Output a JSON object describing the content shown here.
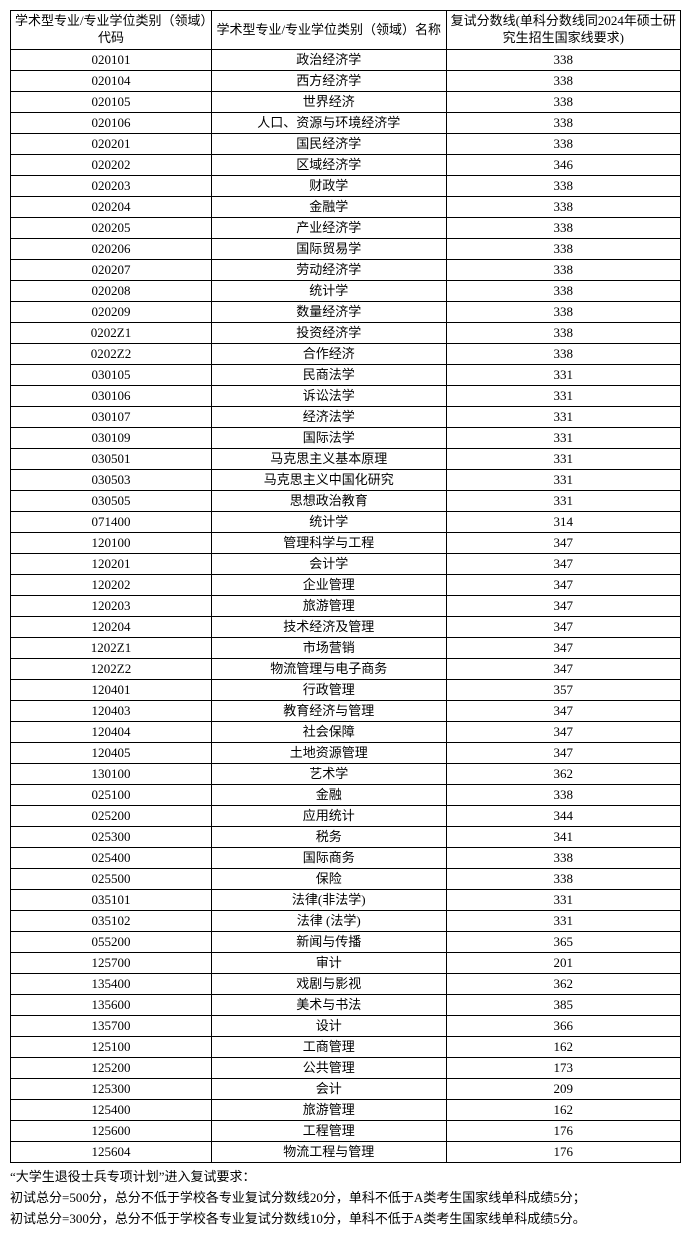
{
  "table": {
    "headers": [
      "学术型专业/专业学位类别（领域）代码",
      "学术型专业/专业学位类别（领域）名称",
      "复试分数线(单科分数线同2024年硕士研究生招生国家线要求)"
    ],
    "rows": [
      [
        "020101",
        "政治经济学",
        "338"
      ],
      [
        "020104",
        "西方经济学",
        "338"
      ],
      [
        "020105",
        "世界经济",
        "338"
      ],
      [
        "020106",
        "人口、资源与环境经济学",
        "338"
      ],
      [
        "020201",
        "国民经济学",
        "338"
      ],
      [
        "020202",
        "区域经济学",
        "346"
      ],
      [
        "020203",
        "财政学",
        "338"
      ],
      [
        "020204",
        "金融学",
        "338"
      ],
      [
        "020205",
        "产业经济学",
        "338"
      ],
      [
        "020206",
        "国际贸易学",
        "338"
      ],
      [
        "020207",
        "劳动经济学",
        "338"
      ],
      [
        "020208",
        "统计学",
        "338"
      ],
      [
        "020209",
        "数量经济学",
        "338"
      ],
      [
        "0202Z1",
        "投资经济学",
        "338"
      ],
      [
        "0202Z2",
        "合作经济",
        "338"
      ],
      [
        "030105",
        "民商法学",
        "331"
      ],
      [
        "030106",
        "诉讼法学",
        "331"
      ],
      [
        "030107",
        "经济法学",
        "331"
      ],
      [
        "030109",
        "国际法学",
        "331"
      ],
      [
        "030501",
        "马克思主义基本原理",
        "331"
      ],
      [
        "030503",
        "马克思主义中国化研究",
        "331"
      ],
      [
        "030505",
        "思想政治教育",
        "331"
      ],
      [
        "071400",
        "统计学",
        "314"
      ],
      [
        "120100",
        "管理科学与工程",
        "347"
      ],
      [
        "120201",
        "会计学",
        "347"
      ],
      [
        "120202",
        "企业管理",
        "347"
      ],
      [
        "120203",
        "旅游管理",
        "347"
      ],
      [
        "120204",
        "技术经济及管理",
        "347"
      ],
      [
        "1202Z1",
        "市场营销",
        "347"
      ],
      [
        "1202Z2",
        "物流管理与电子商务",
        "347"
      ],
      [
        "120401",
        "行政管理",
        "357"
      ],
      [
        "120403",
        "教育经济与管理",
        "347"
      ],
      [
        "120404",
        "社会保障",
        "347"
      ],
      [
        "120405",
        "土地资源管理",
        "347"
      ],
      [
        "130100",
        "艺术学",
        "362"
      ],
      [
        "025100",
        "金融",
        "338"
      ],
      [
        "025200",
        "应用统计",
        "344"
      ],
      [
        "025300",
        "税务",
        "341"
      ],
      [
        "025400",
        "国际商务",
        "338"
      ],
      [
        "025500",
        "保险",
        "338"
      ],
      [
        "035101",
        "法律(非法学)",
        "331"
      ],
      [
        "035102",
        "法律 (法学)",
        "331"
      ],
      [
        "055200",
        "新闻与传播",
        "365"
      ],
      [
        "125700",
        "审计",
        "201"
      ],
      [
        "135400",
        "戏剧与影视",
        "362"
      ],
      [
        "135600",
        "美术与书法",
        "385"
      ],
      [
        "135700",
        "设计",
        "366"
      ],
      [
        "125100",
        "工商管理",
        "162"
      ],
      [
        "125200",
        "公共管理",
        "173"
      ],
      [
        "125300",
        "会计",
        "209"
      ],
      [
        "125400",
        "旅游管理",
        "162"
      ],
      [
        "125600",
        "工程管理",
        "176"
      ],
      [
        "125604",
        "物流工程与管理",
        "176"
      ]
    ]
  },
  "notes": {
    "line1": "“大学生退役士兵专项计划”进入复试要求：",
    "line2": "初试总分=500分，总分不低于学校各专业复试分数线20分，单科不低于A类考生国家线单科成绩5分；",
    "line3": "初试总分=300分，总分不低于学校各专业复试分数线10分，单科不低于A类考生国家线单科成绩5分。"
  }
}
